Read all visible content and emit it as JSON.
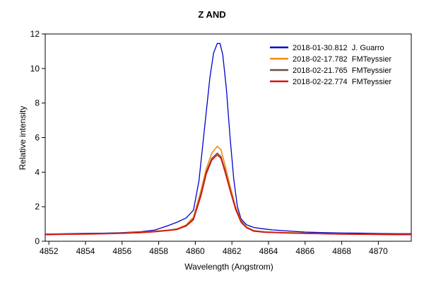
{
  "chart_data": {
    "type": "line",
    "title": "Z AND",
    "xlabel": "Wavelength (Angstrom)",
    "ylabel": "Relative intensity",
    "xlim": [
      4851.8,
      4871.8
    ],
    "ylim": [
      0,
      12
    ],
    "xticks": [
      4852,
      4854,
      4856,
      4858,
      4860,
      4862,
      4864,
      4866,
      4868,
      4870
    ],
    "yticks": [
      0,
      2,
      4,
      6,
      8,
      10,
      12
    ],
    "grid": false,
    "legend_position": "top-right",
    "series": [
      {
        "name": "2018-01-30.812  J. Guarro",
        "color": "#0000cc",
        "points": [
          [
            4851.8,
            0.42
          ],
          [
            4853,
            0.44
          ],
          [
            4854,
            0.46
          ],
          [
            4855,
            0.47
          ],
          [
            4856,
            0.5
          ],
          [
            4857,
            0.55
          ],
          [
            4857.8,
            0.65
          ],
          [
            4858.5,
            0.9
          ],
          [
            4859,
            1.1
          ],
          [
            4859.5,
            1.35
          ],
          [
            4859.9,
            1.8
          ],
          [
            4860.2,
            3.5
          ],
          [
            4860.5,
            6.5
          ],
          [
            4860.8,
            9.5
          ],
          [
            4861,
            10.9
          ],
          [
            4861.2,
            11.45
          ],
          [
            4861.35,
            11.45
          ],
          [
            4861.5,
            10.8
          ],
          [
            4861.7,
            8.8
          ],
          [
            4861.9,
            6.0
          ],
          [
            4862.1,
            3.6
          ],
          [
            4862.3,
            2.0
          ],
          [
            4862.5,
            1.3
          ],
          [
            4862.8,
            0.95
          ],
          [
            4863.2,
            0.8
          ],
          [
            4863.7,
            0.72
          ],
          [
            4864.2,
            0.66
          ],
          [
            4865,
            0.6
          ],
          [
            4866,
            0.53
          ],
          [
            4867,
            0.5
          ],
          [
            4868,
            0.48
          ],
          [
            4869,
            0.47
          ],
          [
            4870,
            0.45
          ],
          [
            4871,
            0.44
          ],
          [
            4871.8,
            0.44
          ]
        ]
      },
      {
        "name": "2018-02-17.782  FMTeyssier",
        "color": "#ee8c0c",
        "points": [
          [
            4851.8,
            0.4
          ],
          [
            4853,
            0.42
          ],
          [
            4854,
            0.43
          ],
          [
            4855,
            0.45
          ],
          [
            4856,
            0.48
          ],
          [
            4857,
            0.52
          ],
          [
            4857.8,
            0.58
          ],
          [
            4858.5,
            0.65
          ],
          [
            4859,
            0.72
          ],
          [
            4859.5,
            0.95
          ],
          [
            4859.9,
            1.4
          ],
          [
            4860.3,
            2.9
          ],
          [
            4860.6,
            4.2
          ],
          [
            4860.9,
            5.1
          ],
          [
            4861.2,
            5.5
          ],
          [
            4861.4,
            5.3
          ],
          [
            4861.6,
            4.5
          ],
          [
            4861.9,
            3.2
          ],
          [
            4862.2,
            2.0
          ],
          [
            4862.5,
            1.2
          ],
          [
            4862.8,
            0.82
          ],
          [
            4863.2,
            0.62
          ],
          [
            4863.8,
            0.55
          ],
          [
            4865,
            0.5
          ],
          [
            4866,
            0.47
          ],
          [
            4867,
            0.45
          ],
          [
            4868,
            0.43
          ],
          [
            4869,
            0.42
          ],
          [
            4870,
            0.41
          ],
          [
            4871,
            0.4
          ],
          [
            4871.8,
            0.4
          ]
        ]
      },
      {
        "name": "2018-02-21.765  FMTeyssier",
        "color": "#6b4c42",
        "points": [
          [
            4851.8,
            0.39
          ],
          [
            4853,
            0.41
          ],
          [
            4854,
            0.42
          ],
          [
            4855,
            0.44
          ],
          [
            4856,
            0.47
          ],
          [
            4857,
            0.5
          ],
          [
            4857.8,
            0.56
          ],
          [
            4858.5,
            0.63
          ],
          [
            4859,
            0.7
          ],
          [
            4859.5,
            0.9
          ],
          [
            4859.9,
            1.3
          ],
          [
            4860.3,
            2.7
          ],
          [
            4860.6,
            4.0
          ],
          [
            4860.9,
            4.8
          ],
          [
            4861.2,
            5.1
          ],
          [
            4861.4,
            4.9
          ],
          [
            4861.6,
            4.2
          ],
          [
            4861.9,
            3.0
          ],
          [
            4862.2,
            1.9
          ],
          [
            4862.5,
            1.15
          ],
          [
            4862.8,
            0.8
          ],
          [
            4863.2,
            0.6
          ],
          [
            4863.8,
            0.53
          ],
          [
            4865,
            0.49
          ],
          [
            4866,
            0.46
          ],
          [
            4867,
            0.44
          ],
          [
            4868,
            0.42
          ],
          [
            4869,
            0.41
          ],
          [
            4870,
            0.4
          ],
          [
            4871,
            0.39
          ],
          [
            4871.8,
            0.39
          ]
        ]
      },
      {
        "name": "2018-02-22.774  FMTeyssier",
        "color": "#dd1111",
        "points": [
          [
            4851.8,
            0.38
          ],
          [
            4853,
            0.4
          ],
          [
            4854,
            0.41
          ],
          [
            4855,
            0.43
          ],
          [
            4856,
            0.46
          ],
          [
            4857,
            0.5
          ],
          [
            4857.8,
            0.55
          ],
          [
            4858.5,
            0.62
          ],
          [
            4859,
            0.68
          ],
          [
            4859.5,
            0.88
          ],
          [
            4859.9,
            1.25
          ],
          [
            4860.3,
            2.6
          ],
          [
            4860.6,
            3.9
          ],
          [
            4860.9,
            4.7
          ],
          [
            4861.2,
            5.0
          ],
          [
            4861.4,
            4.8
          ],
          [
            4861.6,
            4.1
          ],
          [
            4861.9,
            2.95
          ],
          [
            4862.2,
            1.85
          ],
          [
            4862.5,
            1.1
          ],
          [
            4862.8,
            0.78
          ],
          [
            4863.2,
            0.58
          ],
          [
            4863.8,
            0.52
          ],
          [
            4865,
            0.48
          ],
          [
            4866,
            0.45
          ],
          [
            4867,
            0.43
          ],
          [
            4868,
            0.41
          ],
          [
            4869,
            0.4
          ],
          [
            4870,
            0.39
          ],
          [
            4871,
            0.38
          ],
          [
            4871.8,
            0.38
          ]
        ]
      }
    ]
  }
}
